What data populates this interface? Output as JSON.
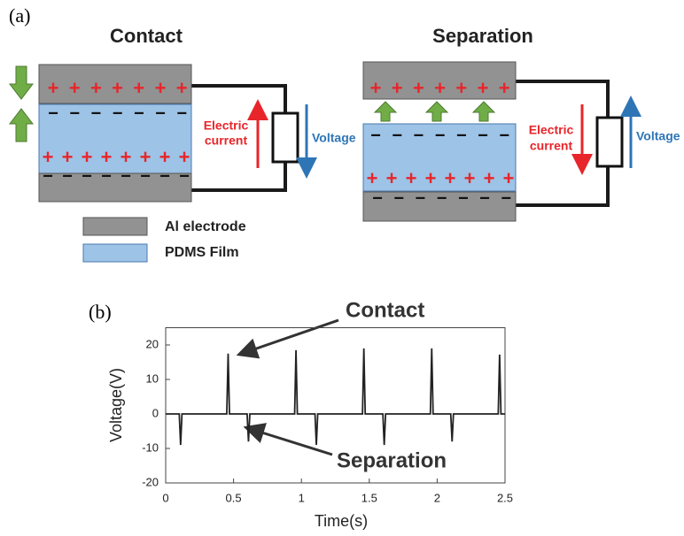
{
  "diagram": {
    "panel_label": "(a)",
    "contact_title": "Contact",
    "separation_title": "Separation",
    "charge_plus": "+",
    "charge_minus": "−",
    "electric_current": [
      "Electric",
      "current"
    ],
    "voltage": "Voltage",
    "legend": [
      "Al electrode",
      "PDMS Film"
    ]
  },
  "chart_data": {
    "type": "line",
    "panel_label": "(b)",
    "x_label": "Time(s)",
    "y_label": "Voltage(V)",
    "annotations": [
      "Contact",
      "Separation"
    ],
    "x": [
      0,
      0.1,
      0.11,
      0.12,
      0.45,
      0.46,
      0.47,
      0.6,
      0.61,
      0.62,
      0.95,
      0.96,
      0.97,
      1.1,
      1.11,
      1.12,
      1.45,
      1.46,
      1.47,
      1.6,
      1.61,
      1.62,
      1.95,
      1.96,
      1.97,
      2.1,
      2.11,
      2.12,
      2.45,
      2.46,
      2.47,
      2.5
    ],
    "series": [
      {
        "color": "#222222",
        "values": [
          0,
          0,
          -9,
          0,
          0,
          17.5,
          0,
          0,
          -8,
          0,
          0,
          18.5,
          0,
          0,
          -9,
          0,
          0,
          19,
          0,
          0,
          -9,
          0,
          0,
          19,
          0,
          0,
          -8,
          0,
          0,
          17.2,
          0,
          0
        ]
      }
    ],
    "xlim": [
      0,
      2.5
    ],
    "xticks": [
      0,
      0.5,
      1,
      1.5,
      2,
      2.5
    ],
    "ylim": [
      -20,
      25
    ],
    "yticks": [
      -20,
      -10,
      0,
      10,
      20
    ]
  }
}
